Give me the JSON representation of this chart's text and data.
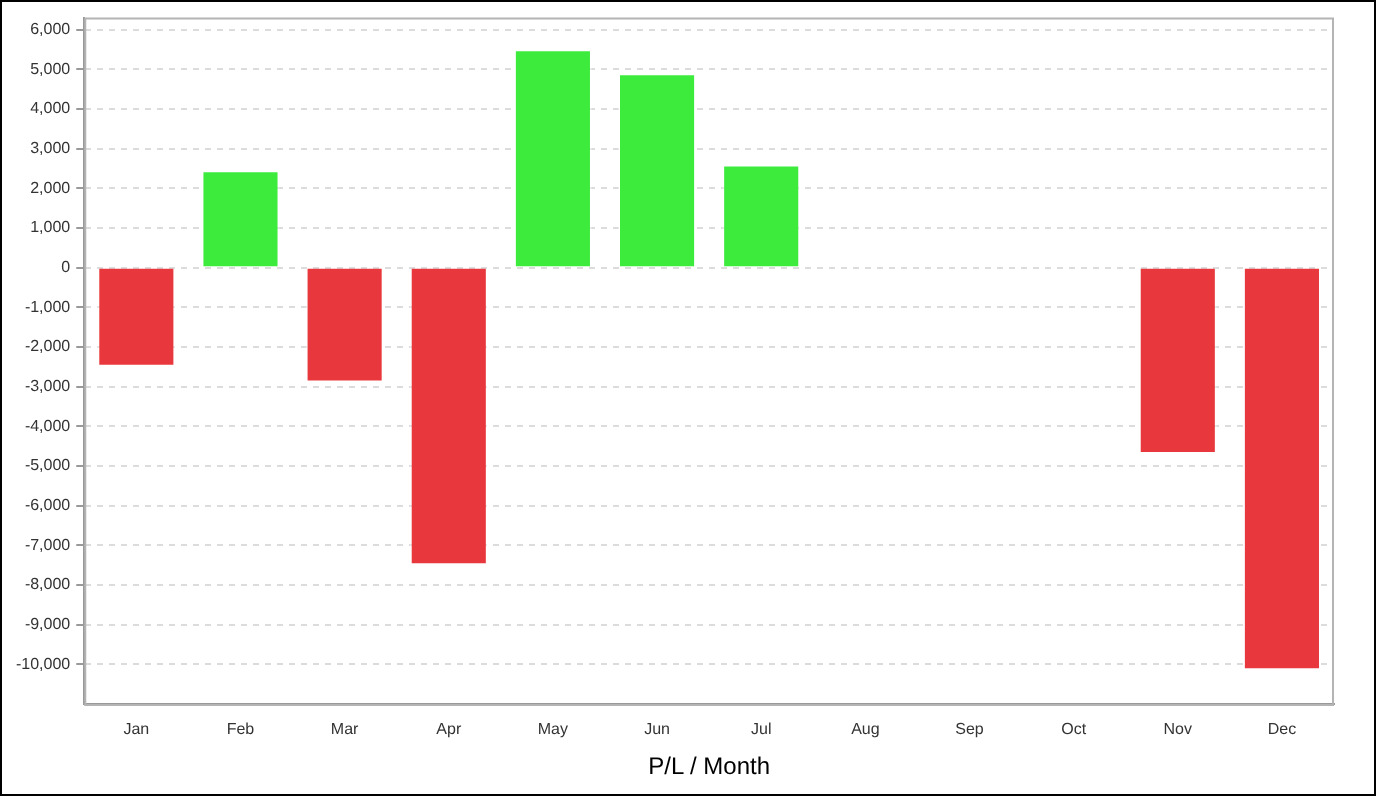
{
  "chart_data": {
    "type": "bar",
    "xlabel": "P/L / Month",
    "categories": [
      "Jan",
      "Feb",
      "Mar",
      "Apr",
      "May",
      "Jun",
      "Jul",
      "Aug",
      "Sep",
      "Oct",
      "Nov",
      "Dec"
    ],
    "values": [
      -2500,
      2450,
      -2900,
      -7500,
      5500,
      4900,
      2600,
      null,
      null,
      null,
      -4700,
      -10150
    ],
    "colors": [
      "#e8383d",
      "#3deb3d",
      "#e8383d",
      "#e8383d",
      "#3deb3d",
      "#3deb3d",
      "#3deb3d",
      null,
      null,
      null,
      "#e8383d",
      "#e8383d"
    ],
    "ylim": [
      -11000,
      6300
    ],
    "yticks": [
      {
        "value": -10000,
        "label": "-10,000"
      },
      {
        "value": -9000,
        "label": "-9,000"
      },
      {
        "value": -8000,
        "label": "-8,000"
      },
      {
        "value": -7000,
        "label": "-7,000"
      },
      {
        "value": -6000,
        "label": "-6,000"
      },
      {
        "value": -5000,
        "label": "-5,000"
      },
      {
        "value": -4000,
        "label": "-4,000"
      },
      {
        "value": -3000,
        "label": "-3,000"
      },
      {
        "value": -2000,
        "label": "-2,000"
      },
      {
        "value": -1000,
        "label": "-1,000"
      },
      0,
      {
        "value": 1000,
        "label": "1,000"
      },
      {
        "value": 2000,
        "label": "2,000"
      },
      {
        "value": 3000,
        "label": "3,000"
      },
      {
        "value": 4000,
        "label": "4,000"
      },
      {
        "value": 5000,
        "label": "5,000"
      },
      {
        "value": 6000,
        "label": "6,000"
      }
    ],
    "grid": "y"
  }
}
